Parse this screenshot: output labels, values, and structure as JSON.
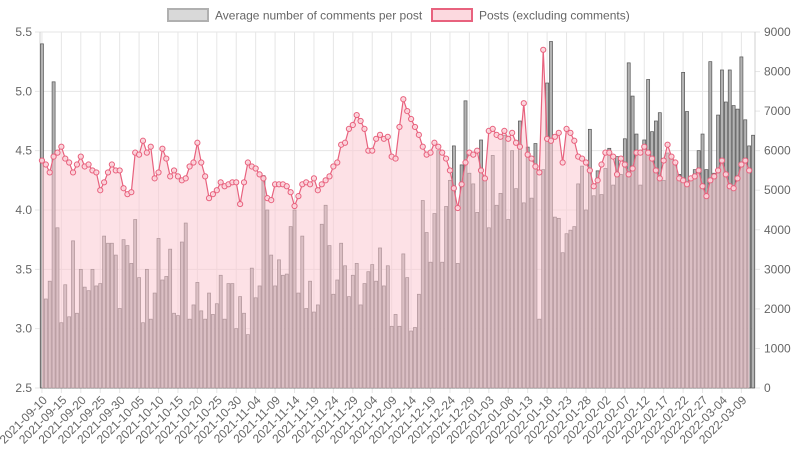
{
  "chart_data": {
    "type": "bar",
    "legend": {
      "placement": "top",
      "items": [
        {
          "label": "Average number of comments per post",
          "color": "#b0b0b0",
          "fill": "#d9d9d9"
        },
        {
          "label": "Posts (excluding comments)",
          "color": "#e8627e",
          "fill": "#fcd9df"
        }
      ]
    },
    "grid": true,
    "left_axis": {
      "min": 2.5,
      "max": 5.5,
      "ticks": [
        "2.5",
        "3.0",
        "3.5",
        "4.0",
        "4.5",
        "5.0",
        "5.5"
      ]
    },
    "right_axis": {
      "min": 0,
      "max": 9000,
      "ticks": [
        "0",
        "1000",
        "2000",
        "3000",
        "4000",
        "5000",
        "6000",
        "7000",
        "8000",
        "9000"
      ]
    },
    "x_tick_labels": [
      "2021-09-10",
      "2021-09-15",
      "2021-09-20",
      "2021-09-25",
      "2021-09-30",
      "2021-10-05",
      "2021-10-10",
      "2021-10-15",
      "2021-10-20",
      "2021-10-25",
      "2021-10-30",
      "2021-11-04",
      "2021-11-09",
      "2021-11-14",
      "2021-11-19",
      "2021-11-24",
      "2021-11-29",
      "2021-12-04",
      "2021-12-09",
      "2021-12-14",
      "2021-12-19",
      "2021-12-24",
      "2021-12-29",
      "2022-01-03",
      "2022-01-08",
      "2022-01-13",
      "2022-01-18",
      "2022-01-23",
      "2022-01-28",
      "2022-02-02",
      "2022-02-07",
      "2022-02-12",
      "2022-02-17",
      "2022-02-22",
      "2022-02-27",
      "2022-03-04",
      "2022-03-09"
    ],
    "start_date": "2021-09-10",
    "series": [
      {
        "name": "Average number of comments per post",
        "type": "bar",
        "axis": "left",
        "color": "#8c8c8c",
        "values": [
          5.4,
          3.25,
          3.4,
          5.08,
          3.85,
          3.05,
          3.37,
          3.1,
          3.74,
          3.13,
          3.5,
          3.35,
          3.32,
          3.5,
          3.36,
          3.38,
          3.78,
          3.72,
          3.72,
          3.62,
          3.17,
          3.75,
          3.7,
          3.55,
          3.92,
          3.43,
          3.05,
          3.5,
          3.08,
          3.3,
          3.76,
          3.41,
          3.44,
          3.67,
          3.13,
          3.11,
          3.73,
          3.89,
          3.08,
          3.2,
          3.39,
          3.15,
          3.08,
          3.3,
          3.12,
          3.21,
          3.45,
          3.08,
          3.38,
          3.38,
          3.0,
          3.27,
          3.13,
          2.95,
          3.51,
          3.26,
          3.36,
          4.29,
          4.0,
          3.62,
          3.36,
          3.58,
          3.45,
          3.46,
          3.86,
          4.0,
          3.3,
          3.78,
          3.17,
          3.4,
          3.14,
          3.2,
          3.88,
          4.04,
          3.7,
          3.29,
          3.41,
          3.72,
          3.53,
          3.27,
          3.45,
          3.55,
          3.2,
          3.38,
          3.48,
          3.54,
          3.4,
          3.68,
          3.36,
          3.53,
          3.02,
          3.12,
          3.02,
          3.63,
          3.43,
          2.98,
          3.01,
          3.29,
          4.08,
          3.81,
          3.56,
          3.97,
          4.5,
          3.56,
          4.03,
          4.25,
          4.54,
          3.55,
          4.38,
          4.92,
          4.31,
          4.22,
          3.98,
          4.59,
          4.28,
          3.85,
          4.46,
          4.04,
          4.14,
          4.63,
          3.92,
          4.5,
          4.18,
          4.75,
          4.06,
          4.53,
          4.1,
          4.56,
          3.08,
          4.34,
          5.07,
          5.42,
          3.94,
          3.93,
          3.64,
          3.8,
          3.83,
          3.86,
          4.22,
          4.37,
          4.0,
          4.68,
          4.12,
          4.33,
          4.13,
          4.35,
          4.52,
          4.21,
          4.45,
          4.3,
          4.6,
          5.24,
          4.96,
          4.64,
          4.21,
          4.59,
          5.1,
          4.66,
          4.75,
          4.82,
          4.25,
          4.48,
          4.44,
          4.38,
          4.3,
          5.16,
          4.83,
          4.26,
          4.34,
          4.5,
          4.64,
          4.34,
          5.25,
          4.31,
          4.8,
          5.18,
          4.91,
          5.18,
          4.88,
          4.85,
          5.29,
          4.76,
          4.54,
          4.63
        ]
      },
      {
        "name": "Posts (excluding comments)",
        "type": "line",
        "axis": "right",
        "color": "#e8627e",
        "values": [
          5750,
          5650,
          5450,
          5850,
          5950,
          6100,
          5800,
          5700,
          5450,
          5650,
          5850,
          5600,
          5650,
          5500,
          5450,
          5000,
          5200,
          5450,
          5650,
          5500,
          5500,
          5050,
          4900,
          4950,
          5950,
          5900,
          6250,
          5950,
          6100,
          5300,
          5450,
          6050,
          5800,
          5350,
          5500,
          5350,
          5250,
          5300,
          5600,
          5700,
          6200,
          5700,
          5350,
          4800,
          4900,
          5000,
          5200,
          5100,
          5150,
          5200,
          5200,
          4650,
          5200,
          5700,
          5600,
          5550,
          5400,
          5300,
          4800,
          4750,
          5150,
          5150,
          5150,
          5100,
          4950,
          4600,
          4850,
          5150,
          5200,
          5150,
          5300,
          5000,
          5150,
          5250,
          5350,
          5600,
          5700,
          6150,
          6200,
          6550,
          6650,
          6900,
          6750,
          6550,
          6000,
          6000,
          6300,
          6400,
          6300,
          6350,
          5850,
          5800,
          6600,
          7300,
          7000,
          6800,
          6600,
          6400,
          6100,
          5900,
          5950,
          6200,
          6100,
          5950,
          5800,
          5500,
          5050,
          4550,
          5150,
          5700,
          5950,
          5900,
          6000,
          5500,
          5300,
          6500,
          6550,
          6400,
          6350,
          6500,
          6300,
          6450,
          6200,
          6100,
          7200,
          5900,
          5800,
          5600,
          5450,
          8550,
          6300,
          6250,
          6350,
          6450,
          5700,
          6550,
          6450,
          6250,
          5850,
          5800,
          5700,
          5500,
          5100,
          5250,
          5650,
          5950,
          5950,
          5850,
          5400,
          5800,
          5650,
          5400,
          5550,
          5950,
          5950,
          6100,
          5950,
          5800,
          5500,
          5300,
          5750,
          6150,
          5850,
          5700,
          5300,
          5250,
          5150,
          5300,
          5350,
          5500,
          5100,
          4850,
          5250,
          5350,
          5500,
          5750,
          5400,
          5100,
          5050,
          5300,
          5650,
          5750,
          5500
        ]
      }
    ]
  }
}
